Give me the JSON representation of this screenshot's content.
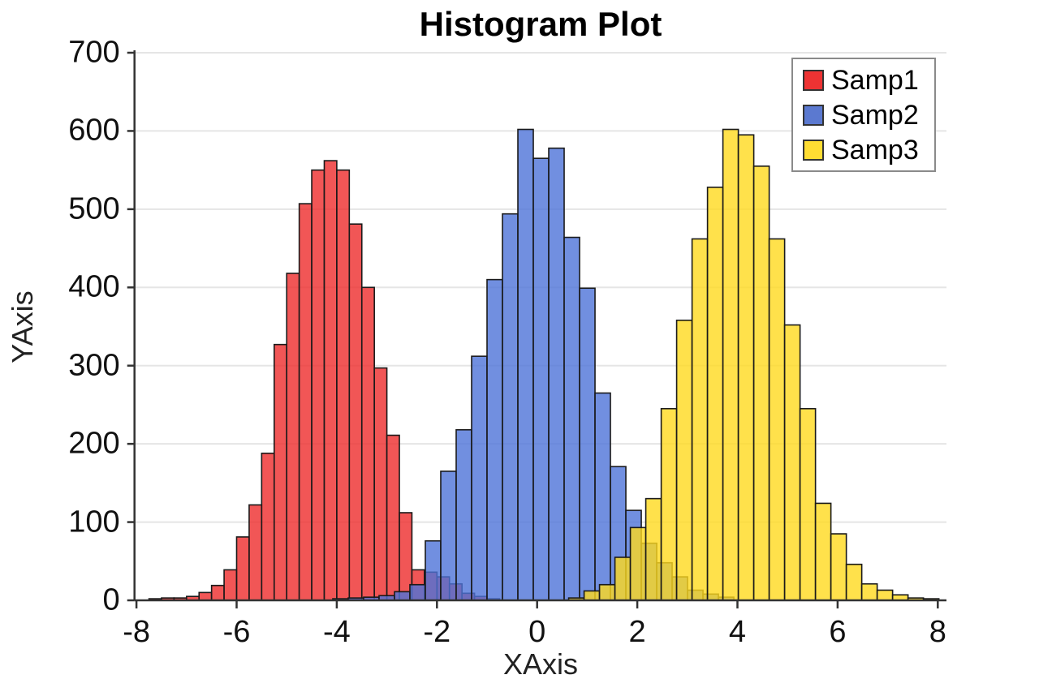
{
  "title": "Histogram Plot",
  "axes": {
    "x": {
      "label": "XAxis",
      "ticks": [
        -8,
        -6,
        -4,
        -2,
        0,
        2,
        4,
        6,
        8
      ]
    },
    "y": {
      "label": "YAxis",
      "ticks": [
        0,
        100,
        200,
        300,
        400,
        500,
        600,
        700
      ]
    }
  },
  "legend": {
    "items": [
      {
        "label": "Samp1",
        "color": "#ee3333"
      },
      {
        "label": "Samp2",
        "color": "#5b79d0"
      },
      {
        "label": "Samp3",
        "color": "#ffdd33"
      }
    ]
  },
  "colors": {
    "axis": "#333333",
    "grid": "#e5e5e5",
    "bar_stroke": "#1a1a1a"
  },
  "chart_data": {
    "type": "bar",
    "subtype": "overlapping-histogram",
    "title": "Histogram Plot",
    "xlabel": "XAxis",
    "ylabel": "YAxis",
    "xlim": [
      -8.05,
      8.17
    ],
    "ylim": [
      0,
      700
    ],
    "grid": "horizontal",
    "legend_position": "top-right",
    "bar_fill_opacity": 0.8,
    "series": [
      {
        "name": "Samp1",
        "color": "#ee2c2c",
        "bin_start": -7.75,
        "bin_width": 0.25,
        "values": [
          2,
          3,
          3,
          5,
          10,
          19,
          39,
          81,
          122,
          188,
          327,
          418,
          507,
          550,
          562,
          550,
          481,
          400,
          297,
          211,
          112,
          39,
          36,
          30,
          21,
          9,
          5,
          2
        ]
      },
      {
        "name": "Samp2",
        "color": "#4d73d8",
        "bin_start": -4.08,
        "bin_width": 0.308,
        "values": [
          2,
          3,
          4,
          6,
          11,
          20,
          76,
          165,
          218,
          312,
          410,
          494,
          602,
          565,
          578,
          464,
          399,
          265,
          171,
          115,
          73,
          48,
          30,
          13,
          8,
          4
        ]
      },
      {
        "name": "Samp3",
        "color": "#ffd91e",
        "bin_start": 0.63,
        "bin_width": 0.308,
        "values": [
          3,
          12,
          20,
          55,
          93,
          130,
          245,
          358,
          462,
          528,
          602,
          595,
          555,
          462,
          352,
          245,
          124,
          85,
          46,
          21,
          13,
          7,
          3,
          2
        ]
      }
    ]
  }
}
